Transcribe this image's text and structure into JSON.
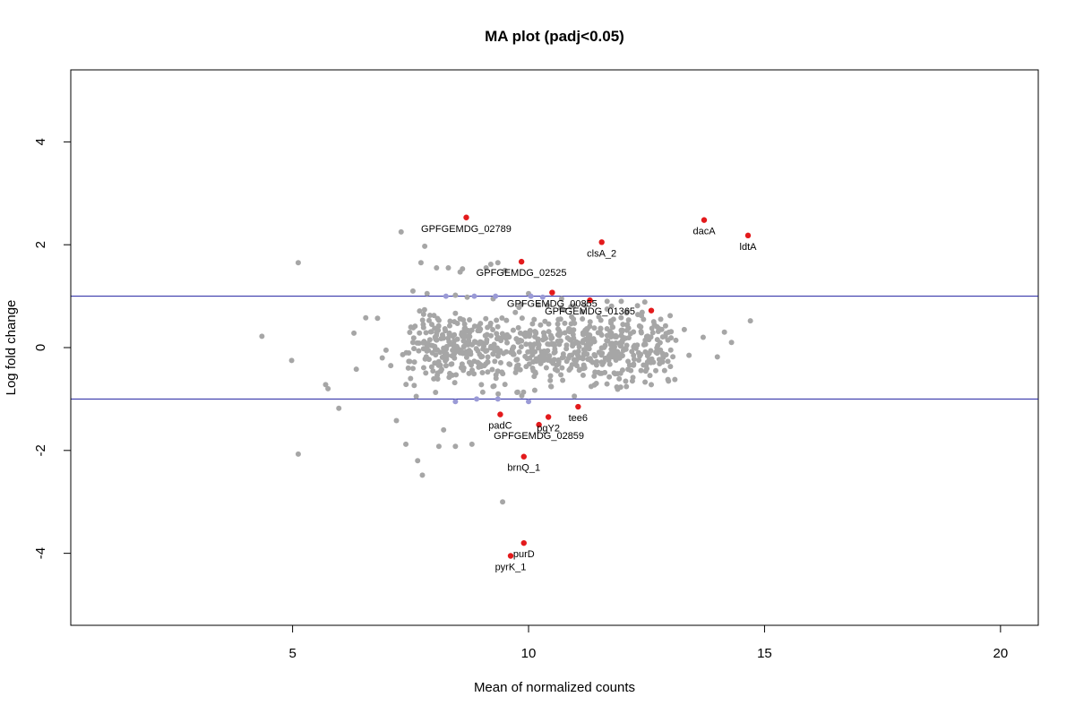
{
  "chart_data": {
    "type": "scatter",
    "title": "MA plot (padj<0.05)",
    "xlabel": "Mean of normalized counts",
    "ylabel": "Log fold change",
    "xlim": [
      0.3,
      20.8
    ],
    "ylim": [
      -5.4,
      5.4
    ],
    "xticks": [
      5,
      10,
      15,
      20
    ],
    "yticks": [
      -4,
      -2,
      0,
      2,
      4
    ],
    "hlines": [
      1,
      -1
    ],
    "colors": {
      "background_points": "#a6a6a6",
      "faded_points": "#9a9ad6",
      "significant_points": "#e31a1c",
      "threshold_lines": "#1f1fa0",
      "axes": "#000000"
    },
    "background_points": [
      [
        4.35,
        0.22
      ],
      [
        4.98,
        -0.25
      ],
      [
        5.12,
        1.65
      ],
      [
        5.12,
        -2.07
      ],
      [
        5.7,
        -0.72
      ],
      [
        5.75,
        -0.8
      ],
      [
        5.98,
        -1.18
      ],
      [
        6.3,
        0.28
      ],
      [
        6.35,
        -0.42
      ],
      [
        6.55,
        0.58
      ],
      [
        6.8,
        0.57
      ],
      [
        6.9,
        -0.2
      ],
      [
        6.98,
        -0.05
      ],
      [
        7.08,
        -0.35
      ],
      [
        7.2,
        -1.42
      ],
      [
        7.3,
        2.25
      ],
      [
        7.4,
        -1.88
      ],
      [
        7.5,
        -0.6
      ],
      [
        7.55,
        0.1
      ],
      [
        7.62,
        -0.95
      ],
      [
        7.65,
        -2.2
      ],
      [
        7.72,
        1.65
      ],
      [
        7.75,
        -2.48
      ],
      [
        7.8,
        1.97
      ],
      [
        7.95,
        0.45
      ],
      [
        8.05,
        1.55
      ],
      [
        8.1,
        -1.92
      ],
      [
        8.2,
        -1.6
      ],
      [
        8.3,
        1.55
      ],
      [
        8.45,
        -1.92
      ],
      [
        8.55,
        1.47
      ],
      [
        8.6,
        1.53
      ],
      [
        8.8,
        -1.88
      ],
      [
        9.0,
        -0.72
      ],
      [
        9.1,
        1.55
      ],
      [
        9.2,
        1.62
      ],
      [
        9.35,
        1.65
      ],
      [
        9.45,
        -3.0
      ],
      [
        9.5,
        1.5
      ],
      [
        10.0,
        1.05
      ],
      [
        10.4,
        0.82
      ],
      [
        10.7,
        0.95
      ],
      [
        11.2,
        0.82
      ],
      [
        11.8,
        0.55
      ],
      [
        12.2,
        -0.65
      ],
      [
        12.6,
        -0.72
      ],
      [
        12.8,
        0.55
      ],
      [
        13.0,
        0.62
      ],
      [
        13.1,
        -0.62
      ],
      [
        13.3,
        0.35
      ],
      [
        13.4,
        -0.15
      ],
      [
        13.7,
        0.2
      ],
      [
        14.0,
        -0.18
      ],
      [
        14.15,
        0.3
      ],
      [
        14.3,
        0.1
      ],
      [
        14.7,
        0.52
      ],
      [
        8.45,
        1.02
      ],
      [
        8.7,
        0.98
      ],
      [
        9.25,
        0.95
      ],
      [
        7.55,
        1.1
      ],
      [
        7.85,
        1.05
      ]
    ],
    "faded_points": [
      [
        8.25,
        1.0
      ],
      [
        8.85,
        1.0
      ],
      [
        9.3,
        1.0
      ],
      [
        10.05,
        1.0
      ],
      [
        10.3,
        0.98
      ],
      [
        8.9,
        -1.0
      ],
      [
        9.35,
        -1.0
      ],
      [
        10.0,
        -1.05
      ],
      [
        8.45,
        -1.05
      ]
    ],
    "significant_points": [
      {
        "label": "GPFGEMDG_02789",
        "x": 8.68,
        "y": 2.53
      },
      {
        "label": "dacA",
        "x": 13.72,
        "y": 2.48
      },
      {
        "label": "ldtA",
        "x": 14.65,
        "y": 2.18
      },
      {
        "label": "clsA_2",
        "x": 11.55,
        "y": 2.05
      },
      {
        "label": "GPFGEMDG_02525",
        "x": 9.85,
        "y": 1.67
      },
      {
        "label": "GPFGEMDG_00855",
        "x": 10.5,
        "y": 1.07
      },
      {
        "label": "GPFGEMDG_01365",
        "x": 11.3,
        "y": 0.92
      },
      {
        "label": "",
        "x": 12.6,
        "y": 0.72
      },
      {
        "label": "tee6",
        "x": 11.05,
        "y": -1.15
      },
      {
        "label": "padC",
        "x": 9.4,
        "y": -1.3
      },
      {
        "label": "pgY2",
        "x": 10.42,
        "y": -1.35
      },
      {
        "label": "GPFGEMDG_02859",
        "x": 10.22,
        "y": -1.5
      },
      {
        "label": "brnQ_1",
        "x": 9.9,
        "y": -2.12
      },
      {
        "label": "purD",
        "x": 9.9,
        "y": -3.8
      },
      {
        "label": "pyrK_1",
        "x": 9.62,
        "y": -4.05
      }
    ]
  }
}
